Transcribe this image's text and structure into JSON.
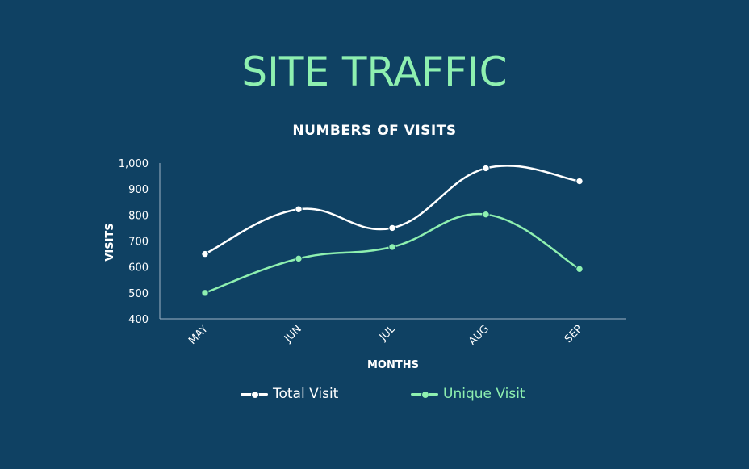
{
  "title": "SITE TRAFFIC",
  "subtitle": "NUMBERS OF VISITS",
  "colors": {
    "background": "#0f4163",
    "title": "#8ef0b0",
    "total": "#ffffff",
    "unique": "#8ef0b0",
    "axis": "#9fb4c4"
  },
  "chart_data": {
    "type": "line",
    "categories": [
      "MAY",
      "JUN",
      "JUL",
      "AUG",
      "SEP"
    ],
    "series": [
      {
        "name": "Total Visit",
        "values": [
          650,
          822,
          750,
          980,
          930
        ]
      },
      {
        "name": "Unique Visit",
        "values": [
          500,
          632,
          677,
          802,
          592
        ]
      }
    ],
    "xlabel": "MONTHS",
    "ylabel": "VISITS",
    "ylim": [
      400,
      1000
    ],
    "yticks": [
      "400",
      "500",
      "600",
      "700",
      "800",
      "900",
      "1,000"
    ],
    "grid": false,
    "legend": "bottom"
  }
}
